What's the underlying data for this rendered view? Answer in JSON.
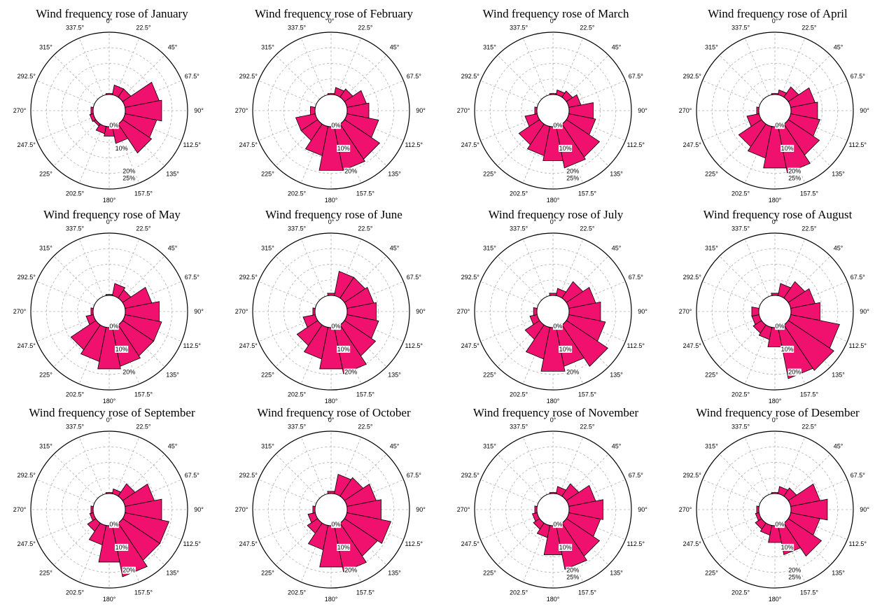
{
  "directions": [
    "0°",
    "22.5°",
    "45°",
    "67.5°",
    "90°",
    "112.5°",
    "135°",
    "157.5°",
    "180°",
    "202.5°",
    "225°",
    "247.5°",
    "270°",
    "292.5°",
    "315°",
    "337.5°"
  ],
  "colors": {
    "bar_fill": "#f0116e",
    "bar_stroke": "#000000",
    "grid": "#b0b0b0"
  },
  "chart_data": [
    {
      "type": "polar-bar",
      "title": "Wind frequency rose of January",
      "radial_ticks": [
        "0%",
        "10%",
        "20%",
        "25%"
      ],
      "rmax": 25,
      "values": [
        0.5,
        4,
        4,
        14,
        15,
        13,
        14,
        7,
        4,
        3,
        1,
        1.5,
        1,
        0,
        0,
        0
      ]
    },
    {
      "type": "polar-bar",
      "title": "Wind frequency rose of February",
      "radial_ticks": [
        "0%",
        "10%",
        "20%"
      ],
      "rmax": 25,
      "values": [
        0.5,
        3,
        4,
        8,
        9,
        13,
        17,
        18,
        18,
        12,
        8,
        8,
        2,
        0,
        0,
        0
      ]
    },
    {
      "type": "polar-bar",
      "title": "Wind frequency rose of March",
      "radial_ticks": [
        "0%",
        "10%",
        "20%",
        "25%"
      ],
      "rmax": 25,
      "values": [
        0.5,
        2,
        3,
        5,
        10,
        11,
        16,
        17,
        14,
        12,
        10,
        5,
        1,
        0,
        0,
        0
      ]
    },
    {
      "type": "polar-bar",
      "title": "Wind frequency rose of April",
      "radial_ticks": [
        "0%",
        "10%",
        "20%",
        "25%"
      ],
      "rmax": 25,
      "values": [
        0.5,
        2,
        5,
        10,
        11,
        12,
        15,
        19,
        17,
        13,
        11,
        5,
        1,
        0,
        0,
        0
      ]
    },
    {
      "type": "polar-bar",
      "title": "Wind frequency rose of May",
      "radial_ticks": [
        "0%",
        "10%",
        "20%"
      ],
      "rmax": 25,
      "values": [
        0.5,
        5,
        4,
        11,
        14,
        15,
        15,
        16,
        17,
        14,
        12,
        3,
        1,
        0,
        0,
        0
      ]
    },
    {
      "type": "polar-bar",
      "title": "Wind frequency rose of June",
      "radial_ticks": [
        "0%",
        "10%",
        "20%"
      ],
      "rmax": 25,
      "values": [
        1,
        10,
        10,
        11,
        12,
        13,
        15,
        19,
        17,
        13,
        10,
        5,
        1,
        0,
        0,
        0
      ]
    },
    {
      "type": "polar-bar",
      "title": "Wind frequency rose of July",
      "radial_ticks": [
        "0%",
        "10%",
        "20%"
      ],
      "rmax": 25,
      "values": [
        1,
        3,
        8,
        11,
        13,
        15,
        20,
        16,
        18,
        13,
        7,
        3,
        1.5,
        0,
        0,
        0
      ]
    },
    {
      "type": "polar-bar",
      "title": "Wind frequency rose of August",
      "radial_ticks": [
        "0%",
        "10%",
        "20%"
      ],
      "rmax": 25,
      "values": [
        1,
        5,
        8,
        10,
        12,
        20,
        22,
        21,
        8,
        5,
        4,
        3,
        3,
        0,
        0,
        0
      ]
    },
    {
      "type": "polar-bar",
      "title": "Wind frequency rose of September",
      "radial_ticks": [
        "0%",
        "10%",
        "20%"
      ],
      "rmax": 25,
      "values": [
        0.5,
        2,
        6,
        12,
        15,
        18,
        18,
        21,
        15,
        8,
        4,
        1.5,
        1,
        0,
        0,
        0
      ]
    },
    {
      "type": "polar-bar",
      "title": "Wind frequency rose of October",
      "radial_ticks": [
        "0%",
        "10%",
        "20%"
      ],
      "rmax": 25,
      "values": [
        1,
        8,
        9,
        12,
        14,
        18,
        16,
        19,
        17,
        10,
        5,
        3,
        1,
        0,
        0,
        0
      ]
    },
    {
      "type": "polar-bar",
      "title": "Wind frequency rose of November",
      "radial_ticks": [
        "0%",
        "10%",
        "20%",
        "25%"
      ],
      "rmax": 25,
      "values": [
        0.5,
        3,
        6,
        11,
        14,
        13,
        16,
        18,
        12,
        5,
        3,
        2,
        1,
        0,
        0,
        0
      ]
    },
    {
      "type": "polar-bar",
      "title": "Wind frequency rose of Desember",
      "radial_ticks": [
        "0%",
        "10%",
        "20%",
        "25%"
      ],
      "rmax": 25,
      "values": [
        0.5,
        3,
        4,
        12,
        15,
        12,
        16,
        12,
        7,
        4,
        3,
        1.5,
        1,
        0,
        0,
        0
      ]
    }
  ]
}
